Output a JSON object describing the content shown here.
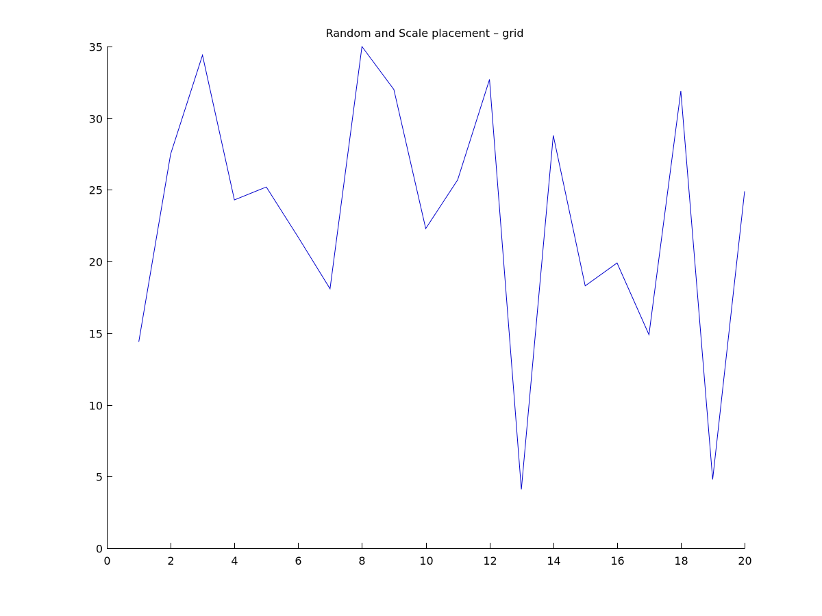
{
  "chart_data": {
    "type": "line",
    "title": "Random and Scale placement – grid",
    "xlabel": "",
    "ylabel": "",
    "xlim": [
      0,
      20
    ],
    "ylim": [
      0,
      35
    ],
    "xticks": [
      0,
      2,
      4,
      6,
      8,
      10,
      12,
      14,
      16,
      18,
      20
    ],
    "yticks": [
      0,
      5,
      10,
      15,
      20,
      25,
      30,
      35
    ],
    "grid": false,
    "series": [
      {
        "color": "#0000cc",
        "x": [
          1,
          2,
          3,
          4,
          5,
          6,
          7,
          8,
          9,
          10,
          11,
          12,
          13,
          14,
          15,
          16,
          17,
          18,
          19,
          20
        ],
        "y": [
          14.4,
          27.5,
          34.4,
          24.3,
          25.2,
          21.7,
          18.1,
          35.0,
          32.0,
          22.3,
          25.7,
          32.7,
          4.1,
          28.8,
          18.3,
          19.9,
          14.9,
          31.9,
          4.8,
          24.9
        ]
      }
    ]
  }
}
